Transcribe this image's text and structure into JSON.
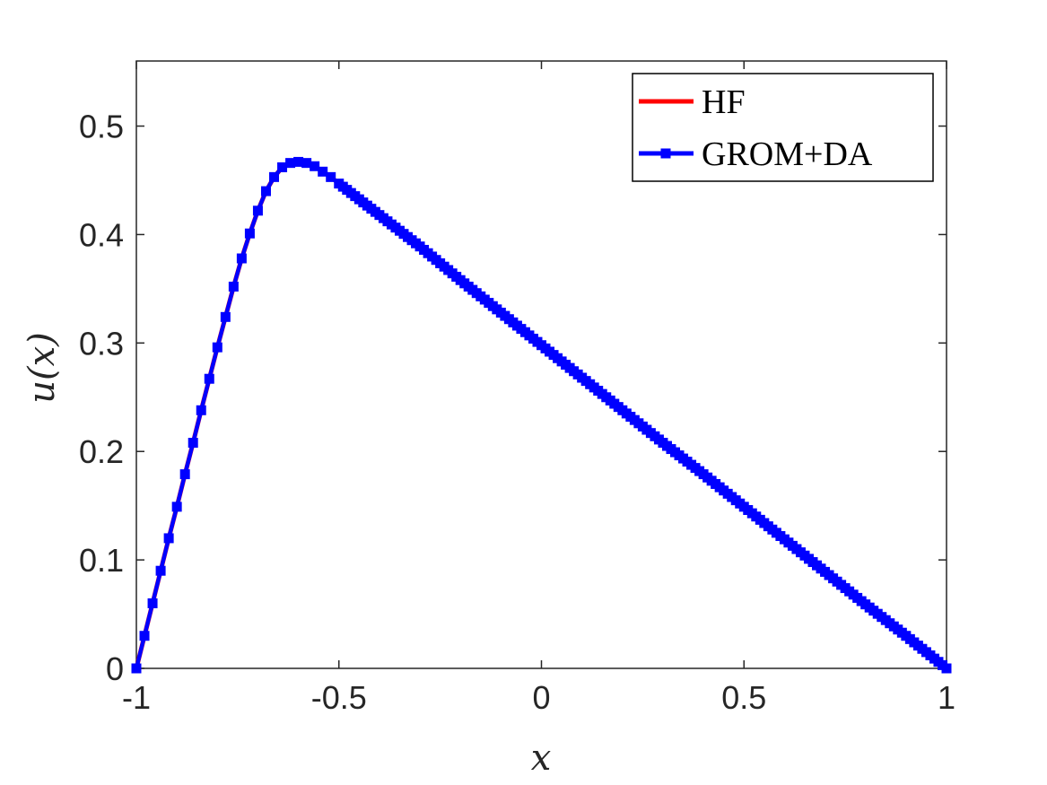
{
  "chart_data": {
    "type": "line",
    "xlabel": "x",
    "ylabel": "u(x)",
    "xlim": [
      -1,
      1
    ],
    "ylim": [
      0,
      0.56
    ],
    "x_ticks": [
      -1,
      -0.5,
      0,
      0.5,
      1
    ],
    "x_tick_labels": [
      "-1",
      "-0.5",
      "0",
      "0.5",
      "1"
    ],
    "y_ticks": [
      0,
      0.1,
      0.2,
      0.3,
      0.4,
      0.5
    ],
    "y_tick_labels": [
      "0",
      "0.1",
      "0.2",
      "0.3",
      "0.4",
      "0.5"
    ],
    "grid": false,
    "legend_position": "top-right",
    "series": [
      {
        "name": "HF",
        "color": "#ff0000",
        "marker": "none",
        "x": [
          -1,
          -0.98,
          -0.96,
          -0.94,
          -0.92,
          -0.9,
          -0.88,
          -0.86,
          -0.84,
          -0.82,
          -0.8,
          -0.78,
          -0.76,
          -0.74,
          -0.72,
          -0.7,
          -0.68,
          -0.66,
          -0.64,
          -0.62,
          -0.6,
          -0.58,
          -0.56,
          -0.54,
          -0.52,
          -0.5,
          -0.4,
          -0.3,
          -0.2,
          -0.1,
          0,
          0.1,
          0.2,
          0.3,
          0.4,
          0.5,
          0.6,
          0.7,
          0.8,
          0.9,
          1
        ],
        "y": [
          0,
          0.03,
          0.06,
          0.09,
          0.12,
          0.149,
          0.179,
          0.208,
          0.238,
          0.267,
          0.296,
          0.324,
          0.352,
          0.378,
          0.401,
          0.422,
          0.44,
          0.453,
          0.462,
          0.466,
          0.467,
          0.466,
          0.463,
          0.458,
          0.453,
          0.447,
          0.418,
          0.389,
          0.358,
          0.328,
          0.298,
          0.268,
          0.238,
          0.208,
          0.179,
          0.149,
          0.119,
          0.089,
          0.059,
          0.03,
          0
        ]
      },
      {
        "name": "GROM+DA",
        "color": "#0000ff",
        "marker": "square",
        "x": [
          -1,
          -0.98,
          -0.96,
          -0.94,
          -0.92,
          -0.9,
          -0.88,
          -0.86,
          -0.84,
          -0.82,
          -0.8,
          -0.78,
          -0.76,
          -0.74,
          -0.72,
          -0.7,
          -0.68,
          -0.66,
          -0.64,
          -0.62,
          -0.6,
          -0.58,
          -0.56,
          -0.54,
          -0.52,
          -0.5,
          -0.4,
          -0.3,
          -0.2,
          -0.1,
          0,
          0.1,
          0.2,
          0.3,
          0.4,
          0.5,
          0.6,
          0.7,
          0.8,
          0.9,
          1
        ],
        "y": [
          0,
          0.03,
          0.06,
          0.09,
          0.12,
          0.149,
          0.179,
          0.208,
          0.238,
          0.267,
          0.296,
          0.324,
          0.352,
          0.378,
          0.401,
          0.422,
          0.44,
          0.453,
          0.462,
          0.466,
          0.467,
          0.466,
          0.463,
          0.458,
          0.453,
          0.447,
          0.418,
          0.389,
          0.358,
          0.328,
          0.298,
          0.268,
          0.238,
          0.208,
          0.179,
          0.149,
          0.119,
          0.089,
          0.059,
          0.03,
          0
        ]
      }
    ]
  }
}
